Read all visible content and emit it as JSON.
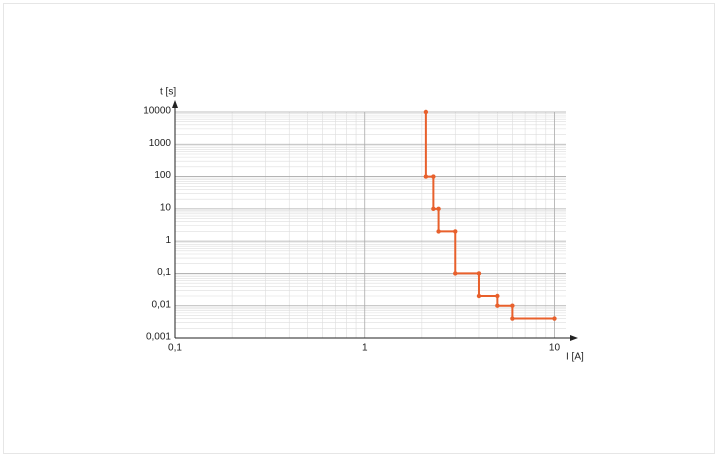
{
  "chart_data": {
    "type": "line",
    "xlabel": "I [A]",
    "ylabel": "t [s]",
    "xscale": "log",
    "yscale": "log",
    "grid": true,
    "xlim": [
      0.1,
      11.5
    ],
    "ylim": [
      0.001,
      10000
    ],
    "xticks": [
      {
        "value": 0.1,
        "label": "0,1"
      },
      1,
      10
    ],
    "yticks": [
      {
        "value": 0.001,
        "label": "0,001"
      },
      {
        "value": 0.01,
        "label": "0,01"
      },
      {
        "value": 0.1,
        "label": "0,1"
      },
      1,
      10,
      100,
      1000,
      10000
    ],
    "x": [
      2.1,
      2.1,
      2.3,
      2.3,
      2.45,
      2.45,
      3,
      3,
      4,
      4,
      5,
      5,
      6,
      6,
      10
    ],
    "series": [
      {
        "color": "#e8602c",
        "values": [
          10000,
          100,
          100,
          10,
          10,
          2,
          2,
          0.1,
          0.1,
          0.02,
          0.02,
          0.01,
          0.01,
          0.004,
          0.004
        ]
      }
    ]
  }
}
